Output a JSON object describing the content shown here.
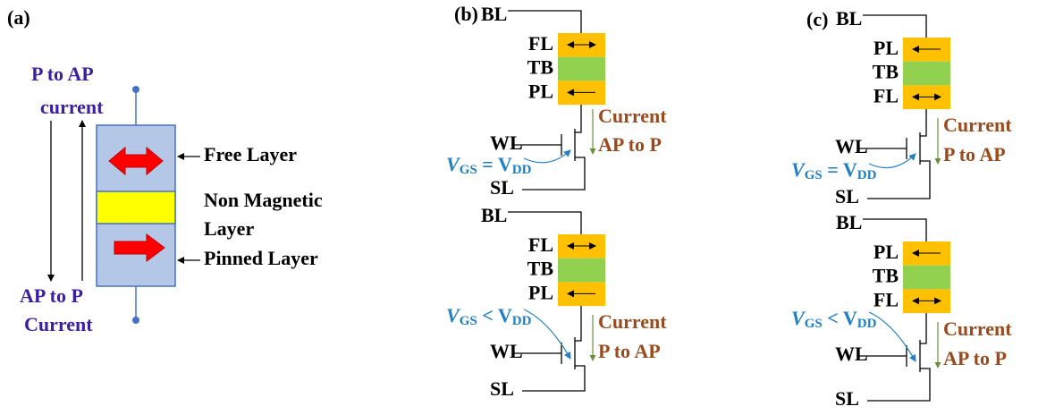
{
  "a": {
    "label": "(a)",
    "top_current": [
      "P to AP",
      "current"
    ],
    "bottom_current": [
      "AP to P",
      "Current"
    ],
    "free_layer": "Free Layer",
    "non_magnetic": [
      "Non Magnetic",
      "Layer"
    ],
    "pinned_layer": "Pinned Layer"
  },
  "b": {
    "label": "(b)",
    "cells": [
      {
        "bl": "BL",
        "layers": [
          "FL",
          "TB",
          "PL"
        ],
        "current": [
          "Current",
          "AP to P"
        ],
        "wl": "WL",
        "vgs": {
          "v": "V",
          "gs": "GS",
          "rel": " = V",
          "dd": "DD"
        },
        "sl": "SL"
      },
      {
        "bl": "BL",
        "layers": [
          "FL",
          "TB",
          "PL"
        ],
        "current": [
          "Current",
          "P to AP"
        ],
        "wl": "WL",
        "vgs": {
          "v": "V",
          "gs": "GS",
          "rel": " < V",
          "dd": "DD"
        },
        "sl": "SL"
      }
    ]
  },
  "c": {
    "label": "(c)",
    "cells": [
      {
        "bl": "BL",
        "layers": [
          "PL",
          "TB",
          "FL"
        ],
        "current": [
          "Current",
          "P to AP"
        ],
        "wl": "WL",
        "vgs": {
          "v": "V",
          "gs": "GS",
          "rel": " = V",
          "dd": "DD"
        },
        "sl": "SL"
      },
      {
        "bl": "BL",
        "layers": [
          "PL",
          "TB",
          "FL"
        ],
        "current": [
          "Current",
          "AP to P"
        ],
        "wl": "WL",
        "vgs": {
          "v": "V",
          "gs": "GS",
          "rel": " < V",
          "dd": "DD"
        },
        "sl": "SL"
      }
    ]
  }
}
